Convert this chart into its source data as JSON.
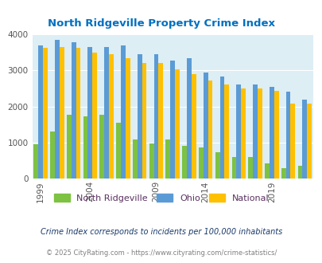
{
  "title": "North Ridgeville Property Crime Index",
  "years": [
    1999,
    2001,
    2002,
    2004,
    2005,
    2006,
    2008,
    2009,
    2011,
    2012,
    2014,
    2015,
    2016,
    2017,
    2019,
    2020,
    2021
  ],
  "north_ridgeville": [
    950,
    1320,
    1780,
    1730,
    1780,
    1550,
    1090,
    970,
    1090,
    920,
    860,
    730,
    600,
    600,
    430,
    300,
    360
  ],
  "ohio": [
    3700,
    3840,
    3780,
    3640,
    3650,
    3680,
    3450,
    3450,
    3270,
    3340,
    2950,
    2820,
    2610,
    2600,
    2550,
    2420,
    2190
  ],
  "national": [
    3620,
    3650,
    3620,
    3500,
    3450,
    3340,
    3210,
    3210,
    3020,
    2900,
    2730,
    2610,
    2500,
    2490,
    2440,
    2070,
    2090
  ],
  "xlabel_years": [
    1999,
    2004,
    2009,
    2014,
    2019
  ],
  "ylim": [
    0,
    4000
  ],
  "yticks": [
    0,
    1000,
    2000,
    3000,
    4000
  ],
  "color_nr": "#7dc242",
  "color_ohio": "#5b9bd5",
  "color_national": "#ffc000",
  "fig_bg_color": "#ffffff",
  "plot_bg": "#ddeef5",
  "title_color": "#0070c0",
  "legend_labels": [
    "North Ridgeville",
    "Ohio",
    "National"
  ],
  "legend_text_color": "#5a3060",
  "footnote1": "Crime Index corresponds to incidents per 100,000 inhabitants",
  "footnote2": "© 2025 CityRating.com - https://www.cityrating.com/crime-statistics/",
  "footnote1_color": "#1a3a6b",
  "footnote2_color": "#808080"
}
